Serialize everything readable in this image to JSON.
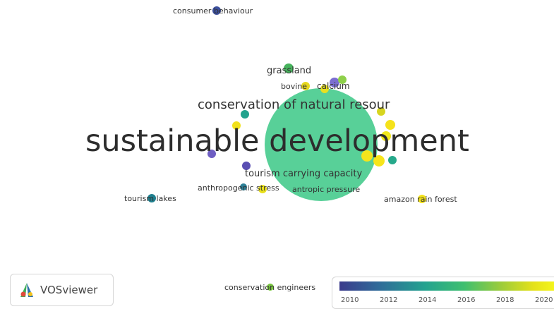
{
  "network": {
    "main_term": "sustainable development",
    "terms": [
      {
        "id": "consumer-behaviour",
        "label": "consumer behaviour"
      },
      {
        "id": "grassland",
        "label": "grassland"
      },
      {
        "id": "bovine",
        "label": "bovine"
      },
      {
        "id": "calcium",
        "label": "calcium"
      },
      {
        "id": "conservation-natural-resources",
        "label": "conservation of natural resour"
      },
      {
        "id": "tourism-carrying-capacity",
        "label": "tourism carrying capacity"
      },
      {
        "id": "anthropogenic-stress",
        "label": "anthropogenic stress"
      },
      {
        "id": "antropic-pressure",
        "label": "antropic pressure"
      },
      {
        "id": "tourism-lakes",
        "label": "tourism lakes"
      },
      {
        "id": "amazon-rain-forest",
        "label": "amazon rain forest"
      },
      {
        "id": "conservation-engineers",
        "label": "conservation engineers"
      }
    ]
  },
  "logo": {
    "text": "VOSviewer"
  },
  "legend": {
    "ticks": [
      "2010",
      "2012",
      "2014",
      "2016",
      "2018",
      "2020"
    ],
    "colors": {
      "start": "#3b3b8c",
      "mid": "#24a38f",
      "end": "#f5f51c"
    }
  }
}
